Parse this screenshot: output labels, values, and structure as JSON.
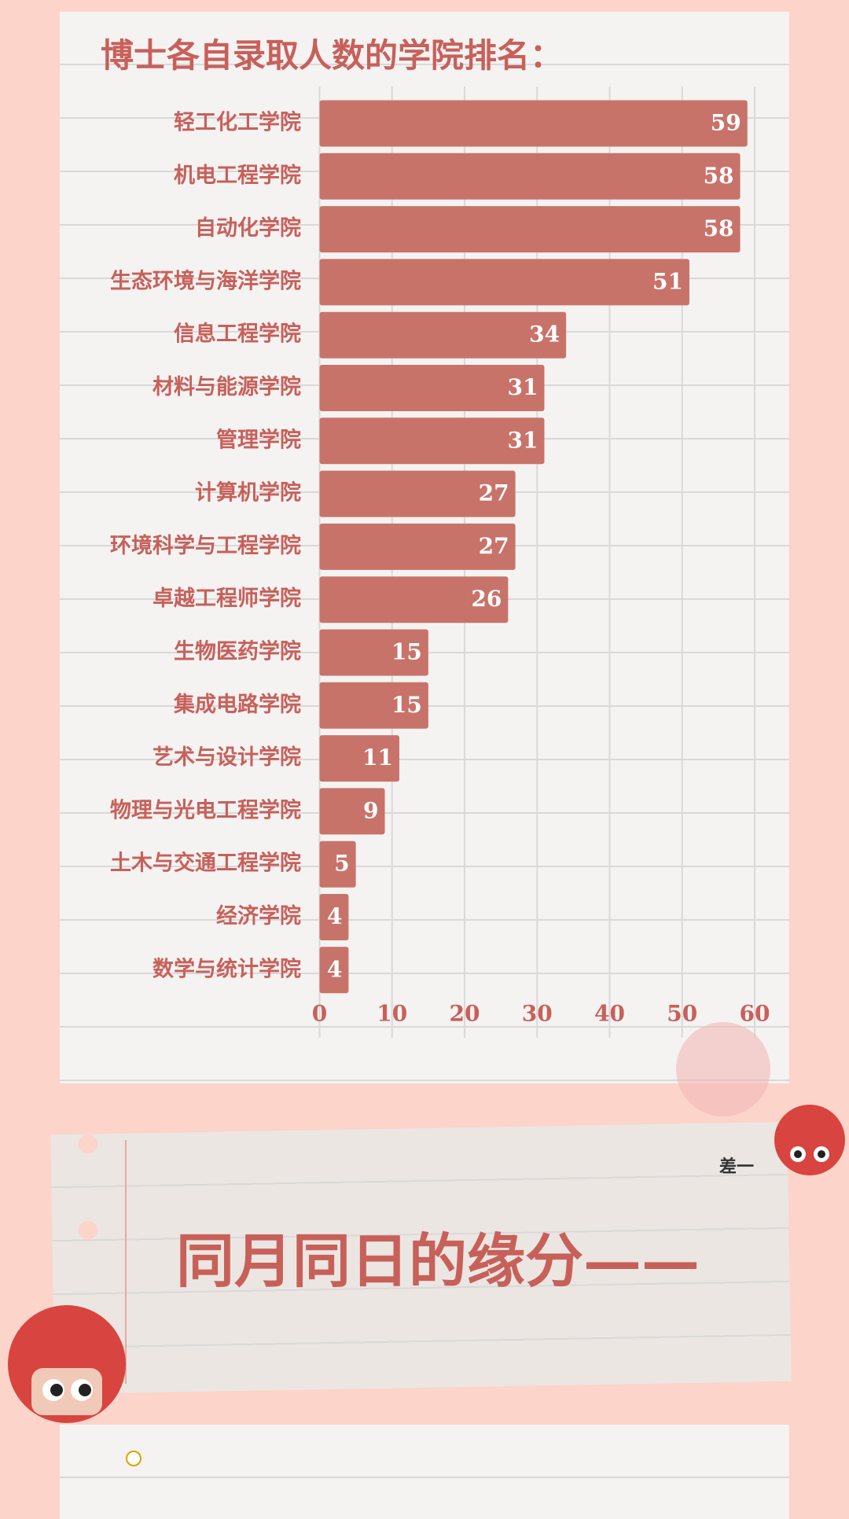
{
  "chart_data": {
    "type": "bar",
    "orientation": "horizontal",
    "title": "博士各自录取人数的学院排名：",
    "categories": [
      "轻工化工学院",
      "机电工程学院",
      "自动化学院",
      "生态环境与海洋学院",
      "信息工程学院",
      "材料与能源学院",
      "管理学院",
      "计算机学院",
      "环境科学与工程学院",
      "卓越工程师学院",
      "生物医药学院",
      "集成电路学院",
      "艺术与设计学院",
      "物理与光电工程学院",
      "土木与交通工程学院",
      "经济学院",
      "数学与统计学院"
    ],
    "values": [
      59,
      58,
      58,
      51,
      34,
      31,
      31,
      27,
      27,
      26,
      15,
      15,
      11,
      9,
      5,
      4,
      4
    ],
    "color": "#c8736a",
    "xlim": [
      0,
      60
    ],
    "xticks": [
      0,
      10,
      20,
      30,
      40,
      50,
      60
    ],
    "grid": true
  },
  "section_title": "同月同日的缘分——",
  "sticker_text": "差一"
}
